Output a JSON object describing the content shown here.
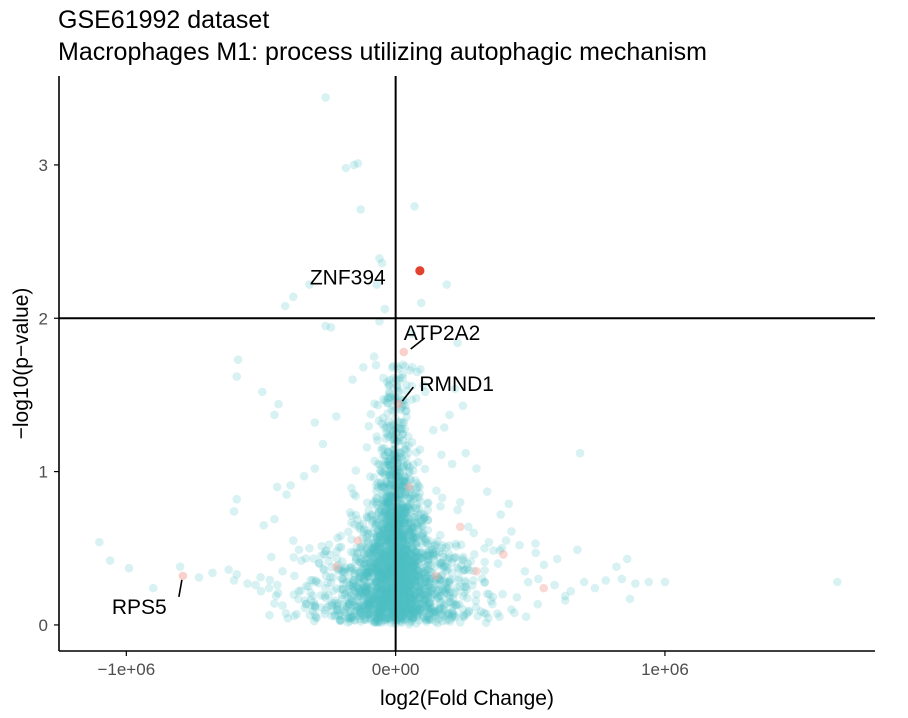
{
  "title": {
    "line1": "GSE61992 dataset",
    "line2": "Macrophages M1: process utilizing autophagic mechanism"
  },
  "colors": {
    "non_significant": "#4FC0C4",
    "significant": "#E2432F",
    "highlight_faded": "#F4A9A0",
    "axis": "#000000",
    "tick_text": "#4d4d4d"
  },
  "chart_data": {
    "type": "scatter",
    "title": "GSE61992 dataset",
    "subtitle": "Macrophages M1: process utilizing autophagic mechanism",
    "xlabel": "log2(Fold Change)",
    "ylabel": "−log10(p−value)",
    "xlim": [
      -1250000,
      1780000
    ],
    "ylim": [
      -0.17,
      3.58
    ],
    "x_ticks": [
      -1000000,
      0,
      1000000
    ],
    "x_tick_labels": [
      "−1e+06",
      "0e+00",
      "1e+06"
    ],
    "y_ticks": [
      0,
      1,
      2,
      3
    ],
    "y_tick_labels": [
      "0",
      "1",
      "2",
      "3"
    ],
    "reference_lines": {
      "vertical_x": 0,
      "horizontal_y": 2
    },
    "grid": false,
    "legend": "none",
    "highlighted_genes": [
      {
        "label": "ZNF394",
        "x": 90000,
        "y": 2.31,
        "significant": true
      },
      {
        "label": "ATP2A2",
        "x": 30000,
        "y": 1.78,
        "significant": false
      },
      {
        "label": "RMND1",
        "x": 10000,
        "y": 1.44,
        "significant": false
      },
      {
        "label": "RPS5",
        "x": -790000,
        "y": 0.32,
        "significant": false
      }
    ],
    "outlier_points": [
      {
        "x": -1100000,
        "y": 0.54
      },
      {
        "x": -1060000,
        "y": 0.42
      },
      {
        "x": -990000,
        "y": 0.37
      },
      {
        "x": -730000,
        "y": 0.31
      },
      {
        "x": -590000,
        "y": 0.33
      },
      {
        "x": -600000,
        "y": 0.29
      },
      {
        "x": -520000,
        "y": 0.26
      },
      {
        "x": -500000,
        "y": 0.22
      },
      {
        "x": -620000,
        "y": 0.36
      },
      {
        "x": -680000,
        "y": 0.34
      },
      {
        "x": -450000,
        "y": 0.14
      },
      {
        "x": -490000,
        "y": 0.65
      },
      {
        "x": -450000,
        "y": 0.69
      },
      {
        "x": -600000,
        "y": 0.74
      },
      {
        "x": -590000,
        "y": 0.82
      },
      {
        "x": -440000,
        "y": 0.9
      },
      {
        "x": -390000,
        "y": 0.91
      },
      {
        "x": -405000,
        "y": 0.85
      },
      {
        "x": -450000,
        "y": 1.37
      },
      {
        "x": -435000,
        "y": 1.44
      },
      {
        "x": -495000,
        "y": 1.52
      },
      {
        "x": -585000,
        "y": 1.73
      },
      {
        "x": -590000,
        "y": 1.62
      },
      {
        "x": -410000,
        "y": 2.08
      },
      {
        "x": -380000,
        "y": 2.14
      },
      {
        "x": -320000,
        "y": 2.22
      },
      {
        "x": -260000,
        "y": 1.95
      },
      {
        "x": -240000,
        "y": 1.94
      },
      {
        "x": -260000,
        "y": 3.44
      },
      {
        "x": -185000,
        "y": 2.98
      },
      {
        "x": -155000,
        "y": 3.0
      },
      {
        "x": -140000,
        "y": 3.01
      },
      {
        "x": -130000,
        "y": 2.71
      },
      {
        "x": 70000,
        "y": 2.73
      },
      {
        "x": -60000,
        "y": 2.39
      },
      {
        "x": 95000,
        "y": 2.1
      },
      {
        "x": 190000,
        "y": 2.22
      },
      {
        "x": 230000,
        "y": 1.84
      },
      {
        "x": 220000,
        "y": 1.54
      },
      {
        "x": 250000,
        "y": 1.43
      },
      {
        "x": 200000,
        "y": 1.37
      },
      {
        "x": 170000,
        "y": 1.11
      },
      {
        "x": 260000,
        "y": 1.12
      },
      {
        "x": 210000,
        "y": 1.05
      },
      {
        "x": 300000,
        "y": 1.02
      },
      {
        "x": 340000,
        "y": 0.87
      },
      {
        "x": 240000,
        "y": 0.8
      },
      {
        "x": 230000,
        "y": 0.75
      },
      {
        "x": 290000,
        "y": 0.6
      },
      {
        "x": 330000,
        "y": 0.5
      },
      {
        "x": 410000,
        "y": 0.55
      },
      {
        "x": 460000,
        "y": 0.52
      },
      {
        "x": 520000,
        "y": 0.47
      },
      {
        "x": 600000,
        "y": 0.43
      },
      {
        "x": 675000,
        "y": 0.49
      },
      {
        "x": 685000,
        "y": 1.12
      },
      {
        "x": 480000,
        "y": 0.35
      },
      {
        "x": 530000,
        "y": 0.3
      },
      {
        "x": 590000,
        "y": 0.26
      },
      {
        "x": 700000,
        "y": 0.28
      },
      {
        "x": 740000,
        "y": 0.24
      },
      {
        "x": 780000,
        "y": 0.29
      },
      {
        "x": 820000,
        "y": 0.38
      },
      {
        "x": 840000,
        "y": 0.3
      },
      {
        "x": 890000,
        "y": 0.27
      },
      {
        "x": 940000,
        "y": 0.28
      },
      {
        "x": 1000000,
        "y": 0.28
      },
      {
        "x": 860000,
        "y": 0.43
      },
      {
        "x": 650000,
        "y": 0.22
      },
      {
        "x": 630000,
        "y": 0.16
      },
      {
        "x": 870000,
        "y": 0.17
      },
      {
        "x": 1640000,
        "y": 0.28
      },
      {
        "x": -800000,
        "y": 0.38
      },
      {
        "x": -900000,
        "y": 0.24
      },
      {
        "x": 420000,
        "y": 0.79
      },
      {
        "x": 390000,
        "y": 0.72
      },
      {
        "x": 430000,
        "y": 0.61
      },
      {
        "x": -300000,
        "y": 1.02
      },
      {
        "x": -340000,
        "y": 0.97
      },
      {
        "x": -300000,
        "y": 1.32
      },
      {
        "x": -270000,
        "y": 1.18
      },
      {
        "x": -220000,
        "y": 1.36
      },
      {
        "x": -160000,
        "y": 1.6
      },
      {
        "x": -120000,
        "y": 1.68
      },
      {
        "x": -80000,
        "y": 1.75
      },
      {
        "x": -60000,
        "y": 1.98
      },
      {
        "x": -40000,
        "y": 2.06
      },
      {
        "x": -70000,
        "y": 2.22
      },
      {
        "x": -50000,
        "y": 2.36
      },
      {
        "x": 60000,
        "y": 1.9
      },
      {
        "x": 80000,
        "y": 1.65
      },
      {
        "x": 110000,
        "y": 1.52
      },
      {
        "x": 140000,
        "y": 1.27
      },
      {
        "x": 330000,
        "y": 0.28
      },
      {
        "x": 380000,
        "y": 0.4
      },
      {
        "x": 270000,
        "y": 0.64
      },
      {
        "x": 250000,
        "y": 0.42
      },
      {
        "x": 300000,
        "y": 0.2
      },
      {
        "x": 450000,
        "y": 0.18
      },
      {
        "x": -350000,
        "y": 0.42
      },
      {
        "x": -320000,
        "y": 0.5
      },
      {
        "x": -380000,
        "y": 0.55
      },
      {
        "x": -420000,
        "y": 0.35
      },
      {
        "x": -550000,
        "y": 0.27
      },
      {
        "x": -470000,
        "y": 0.24
      },
      {
        "x": -360000,
        "y": 0.22
      },
      {
        "x": -300000,
        "y": 0.12
      }
    ],
    "faded_red_points": [
      {
        "x": 240000,
        "y": 0.64
      },
      {
        "x": 400000,
        "y": 0.46
      },
      {
        "x": 550000,
        "y": 0.24
      },
      {
        "x": 300000,
        "y": 0.35
      },
      {
        "x": 50000,
        "y": 0.9
      },
      {
        "x": -140000,
        "y": 0.55
      },
      {
        "x": -220000,
        "y": 0.38
      },
      {
        "x": 150000,
        "y": 0.32
      }
    ],
    "n_core_points": 2600,
    "core_seed": 61992
  }
}
